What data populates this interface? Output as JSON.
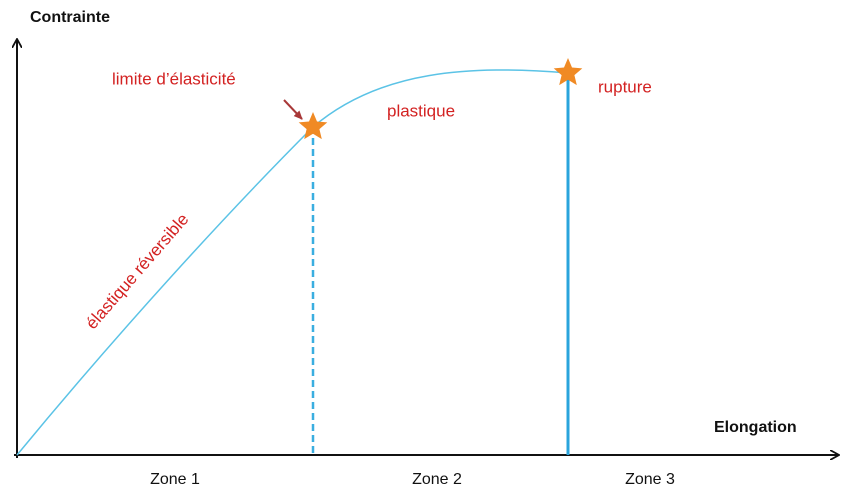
{
  "axes": {
    "y_label": "Contrainte",
    "x_label": "Elongation"
  },
  "annotations": {
    "yield": "limite d’élasticité",
    "plastic": "plastique",
    "rupture": "rupture",
    "elastic": "élastique réversible"
  },
  "zones": [
    "Zone 1",
    "Zone 2",
    "Zone 3"
  ]
}
